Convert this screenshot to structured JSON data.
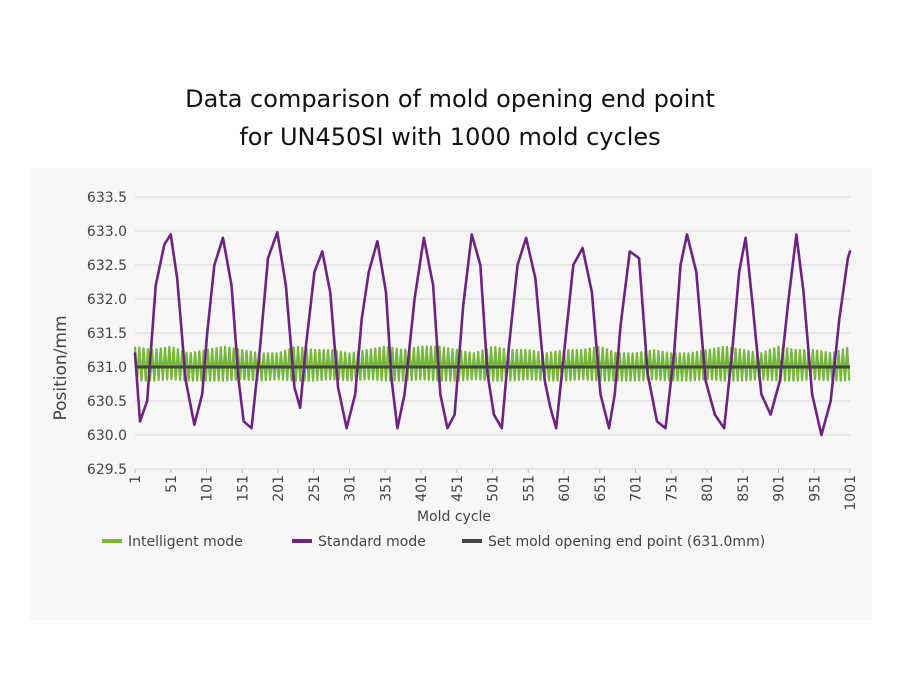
{
  "chart_data": {
    "type": "line",
    "title": "Data comparison of mold opening end point for UN450SI with 1000 mold cycles",
    "title_lines": [
      "Data comparison of mold opening end point",
      "for UN450SI with 1000 mold cycles"
    ],
    "xlabel": "Mold cycle",
    "ylabel": "Position/mm",
    "xlim": [
      1,
      1001
    ],
    "ylim": [
      629.5,
      633.5
    ],
    "x_ticks": [
      1,
      51,
      101,
      151,
      201,
      251,
      301,
      351,
      401,
      451,
      501,
      551,
      601,
      651,
      701,
      751,
      801,
      851,
      901,
      951,
      1001
    ],
    "y_ticks": [
      629.5,
      630.0,
      630.5,
      631.0,
      631.5,
      632.0,
      632.5,
      633.0,
      633.5
    ],
    "y_tick_labels": [
      "629.5",
      "630.0",
      "630.5",
      "631.0",
      "631.5",
      "632.0",
      "632.5",
      "633.0",
      "633.5"
    ],
    "grid": "horizontal",
    "legend_position": "bottom",
    "series": [
      {
        "name": "Intelligent mode",
        "color": "#76b83b",
        "style": "dense oscillation around 631.0",
        "x": [
          1,
          26,
          51,
          76,
          101,
          126,
          151,
          176,
          201,
          226,
          251,
          276,
          301,
          326,
          351,
          376,
          401,
          426,
          451,
          476,
          501,
          526,
          551,
          576,
          601,
          626,
          651,
          676,
          701,
          726,
          751,
          776,
          801,
          826,
          851,
          876,
          901,
          926,
          951,
          976,
          1001
        ],
        "upper": [
          631.3,
          631.25,
          631.3,
          631.2,
          631.25,
          631.3,
          631.25,
          631.2,
          631.2,
          631.3,
          631.25,
          631.25,
          631.2,
          631.25,
          631.3,
          631.25,
          631.3,
          631.3,
          631.25,
          631.2,
          631.3,
          631.25,
          631.25,
          631.2,
          631.25,
          631.25,
          631.3,
          631.2,
          631.2,
          631.25,
          631.2,
          631.2,
          631.25,
          631.3,
          631.25,
          631.2,
          631.3,
          631.25,
          631.25,
          631.2,
          631.3
        ],
        "lower": [
          630.8,
          630.8,
          630.82,
          630.8,
          630.8,
          630.8,
          630.82,
          630.8,
          630.82,
          630.8,
          630.8,
          630.82,
          630.8,
          630.82,
          630.8,
          630.8,
          630.82,
          630.8,
          630.8,
          630.82,
          630.8,
          630.8,
          630.82,
          630.8,
          630.8,
          630.82,
          630.8,
          630.8,
          630.8,
          630.82,
          630.8,
          630.8,
          630.82,
          630.8,
          630.8,
          630.82,
          630.8,
          630.8,
          630.82,
          630.8,
          630.8
        ]
      },
      {
        "name": "Standard mode",
        "color": "#6e2380",
        "x": [
          1,
          8,
          18,
          30,
          42,
          51,
          60,
          72,
          84,
          95,
          102,
          112,
          124,
          136,
          146,
          153,
          164,
          176,
          187,
          200,
          212,
          224,
          232,
          240,
          252,
          263,
          274,
          285,
          297,
          309,
          318,
          328,
          340,
          352,
          360,
          368,
          378,
          392,
          405,
          418,
          428,
          438,
          448,
          460,
          472,
          484,
          494,
          503,
          514,
          524,
          536,
          548,
          561,
          574,
          582,
          590,
          602,
          614,
          627,
          640,
          652,
          664,
          672,
          680,
          693,
          706,
          718,
          731,
          743,
          755,
          764,
          773,
          786,
          799,
          812,
          825,
          836,
          846,
          855,
          864,
          877,
          890,
          903,
          914,
          926,
          936,
          948,
          961,
          974,
          986,
          998,
          1001
        ],
        "values": [
          631.2,
          630.2,
          630.5,
          632.2,
          632.8,
          632.95,
          632.3,
          630.8,
          630.15,
          630.6,
          631.5,
          632.5,
          632.9,
          632.2,
          630.8,
          630.2,
          630.1,
          631.3,
          632.6,
          632.98,
          632.2,
          630.7,
          630.4,
          631.3,
          632.4,
          632.7,
          632.1,
          630.7,
          630.1,
          630.6,
          631.7,
          632.4,
          632.85,
          632.1,
          630.8,
          630.1,
          630.6,
          632.0,
          632.9,
          632.2,
          630.6,
          630.1,
          630.3,
          631.9,
          632.95,
          632.5,
          630.9,
          630.3,
          630.1,
          631.3,
          632.5,
          632.9,
          632.3,
          630.8,
          630.4,
          630.1,
          631.3,
          632.5,
          632.75,
          632.1,
          630.6,
          630.1,
          630.6,
          631.6,
          632.7,
          632.6,
          630.9,
          630.2,
          630.1,
          631.2,
          632.5,
          632.95,
          632.4,
          630.8,
          630.3,
          630.1,
          631.2,
          632.4,
          632.9,
          632.0,
          630.6,
          630.3,
          630.8,
          631.9,
          632.95,
          632.1,
          630.6,
          630.0,
          630.5,
          631.7,
          632.6,
          632.7
        ]
      },
      {
        "name": "Set mold opening end point (631.0mm)",
        "color": "#444444",
        "x": [
          1,
          1001
        ],
        "values": [
          631.0,
          631.0
        ]
      }
    ]
  }
}
